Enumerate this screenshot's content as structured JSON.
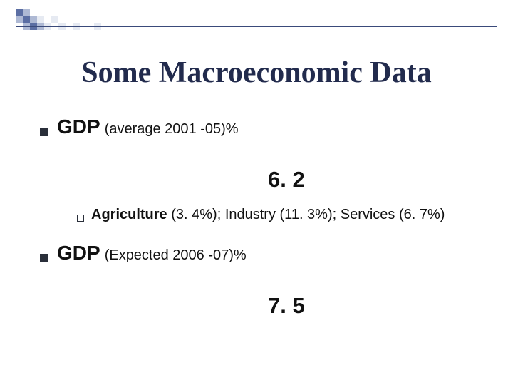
{
  "colors": {
    "title_color": "#222b4d",
    "text_color": "#111111",
    "bullet_color": "#2a2f3a",
    "background": "#ffffff",
    "deco_dark": "#5b6ea3",
    "deco_mid": "#aeb9d4",
    "deco_light": "#e6eaf2",
    "rule": "#3a4a7a"
  },
  "typography": {
    "title_font": "Times New Roman",
    "body_font": "Arial",
    "title_size_pt": 32,
    "gdp_label_size_pt": 21,
    "gdp_sub_size_pt": 15,
    "big_number_size_pt": 23,
    "sub_text_size_pt": 15
  },
  "title": "Some Macroeconomic Data",
  "items": [
    {
      "label": "GDP",
      "sublabel": "(average 2001 -05)%",
      "value": "6. 2",
      "breakdown_lead": "Agriculture",
      "breakdown_rest": " (3. 4%); Industry (11. 3%); Services (6. 7%)"
    },
    {
      "label": "GDP",
      "sublabel": "(Expected 2006 -07)%",
      "value": "7. 5"
    }
  ]
}
